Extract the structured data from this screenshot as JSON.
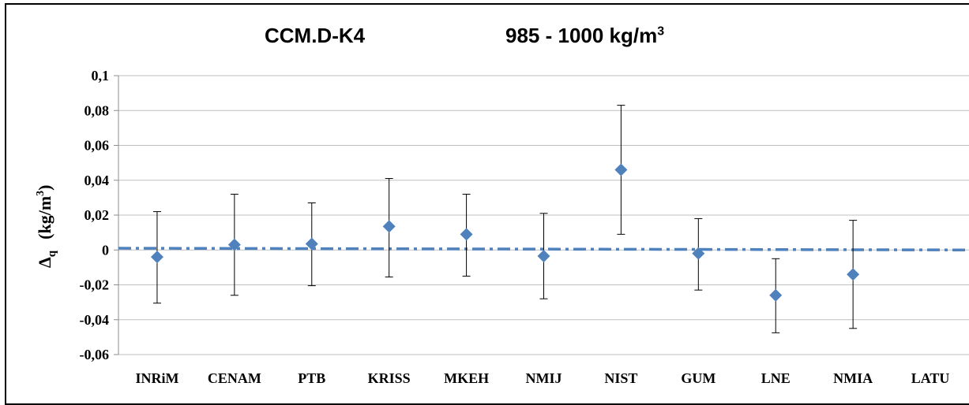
{
  "chart_data": {
    "type": "scatter",
    "title": "CCM.D-K4",
    "subtitle": "985 - 1000  kg/m",
    "subtitle_superscript": "3",
    "ylabel_symbol": "Δ",
    "ylabel_subscript": "q",
    "ylabel_units": "(kg/m",
    "ylabel_superscript": "3",
    "ylabel_close": ")",
    "ylim": [
      -0.06,
      0.1
    ],
    "yticks": [
      0.1,
      0.08,
      0.06,
      0.04,
      0.02,
      0,
      -0.02,
      -0.04,
      -0.06
    ],
    "ytick_labels": [
      "0,1",
      "0,08",
      "0,06",
      "0,04",
      "0,02",
      "0",
      "-0,02",
      "-0,04",
      "-0,06"
    ],
    "grid": true,
    "categories": [
      "INRiM",
      "CENAM",
      "PTB",
      "KRISS",
      "MKEH",
      "NMIJ",
      "NIST",
      "GUM",
      "LNE",
      "NMIA",
      "LATU"
    ],
    "series": [
      {
        "values": [
          -0.004,
          0.003,
          0.0035,
          0.0135,
          0.009,
          -0.0035,
          0.046,
          -0.002,
          -0.026,
          -0.014,
          null
        ],
        "err_low": [
          -0.0305,
          -0.026,
          -0.0205,
          -0.0155,
          -0.015,
          -0.028,
          0.009,
          -0.023,
          -0.0475,
          -0.045,
          null
        ],
        "err_high": [
          0.022,
          0.032,
          0.027,
          0.041,
          0.032,
          0.021,
          0.083,
          0.018,
          -0.005,
          0.017,
          null
        ],
        "color": "#4f81bd"
      }
    ],
    "reference_line": {
      "start": 0.001,
      "end": 0.0,
      "color": "#4f81bd"
    }
  }
}
